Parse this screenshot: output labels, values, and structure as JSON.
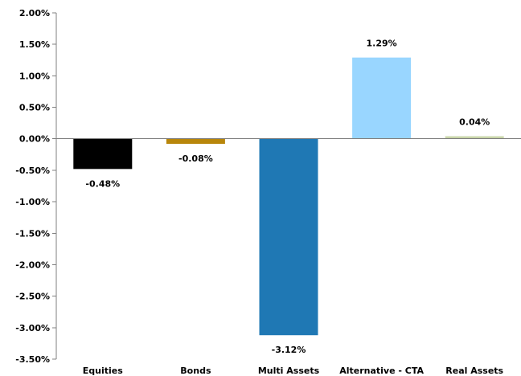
{
  "chart_data": {
    "type": "bar",
    "title": "",
    "xlabel": "",
    "ylabel": "",
    "categories": [
      "Equities",
      "Bonds",
      "Multi Assets",
      "Alternative - CTA",
      "Real Assets"
    ],
    "values": [
      -0.48,
      -0.08,
      -3.12,
      1.29,
      0.04
    ],
    "data_labels": [
      "-0.48%",
      "-0.08%",
      "-3.12%",
      "1.29%",
      "0.04%"
    ],
    "bar_colors": [
      "#000000",
      "#B8860B",
      "#1F78B4",
      "#99D6FF",
      "#C8D5A8"
    ],
    "ylim": [
      -3.5,
      2.0
    ],
    "y_ticks": [
      2.0,
      1.5,
      1.0,
      0.5,
      0.0,
      -0.5,
      -1.0,
      -1.5,
      -2.0,
      -2.5,
      -3.0,
      -3.5
    ],
    "y_tick_labels": [
      "2.00%",
      "1.50%",
      "1.00%",
      "0.50%",
      "0.00%",
      "-0.50%",
      "-1.00%",
      "-1.50%",
      "-2.00%",
      "-2.50%",
      "-3.00%",
      "-3.50%"
    ],
    "grid": false,
    "legend": "none",
    "axis_color": "#808080"
  }
}
